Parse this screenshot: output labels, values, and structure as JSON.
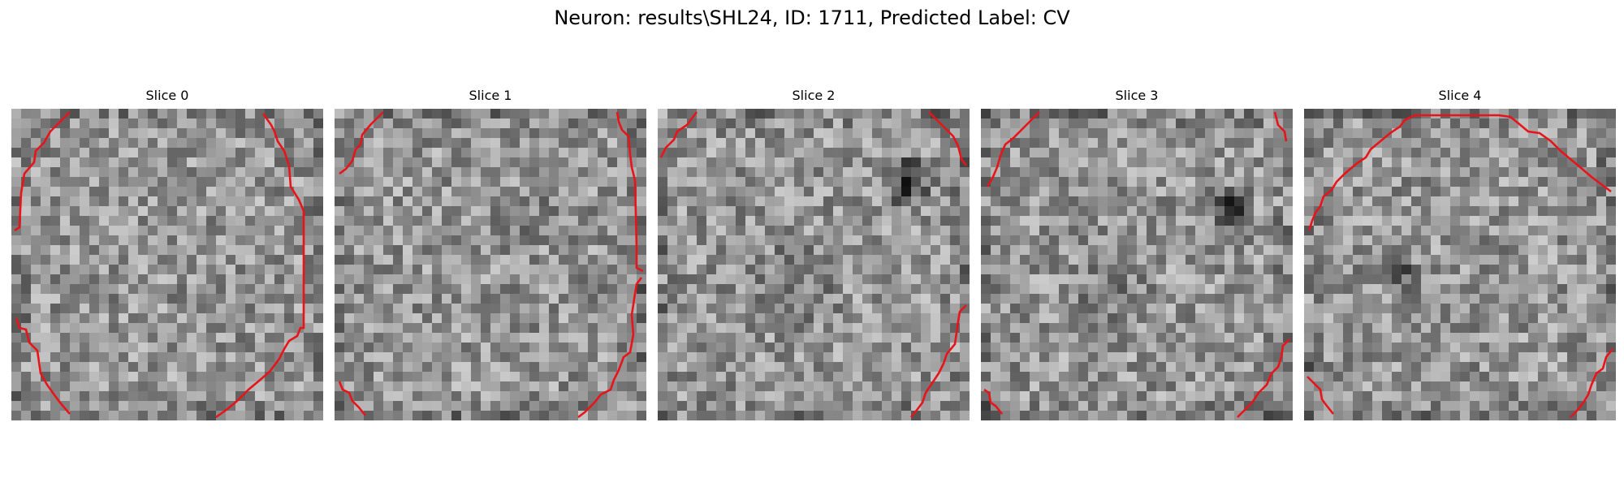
{
  "figure": {
    "title": "Neuron: results\\SHL24, ID: 1711, Predicted Label: CV"
  },
  "panels": [
    {
      "title": "Slice 0"
    },
    {
      "title": "Slice 1"
    },
    {
      "title": "Slice 2"
    },
    {
      "title": "Slice 3"
    },
    {
      "title": "Slice 4"
    }
  ],
  "colors": {
    "contour": "#e8141a",
    "background": "#ffffff"
  }
}
